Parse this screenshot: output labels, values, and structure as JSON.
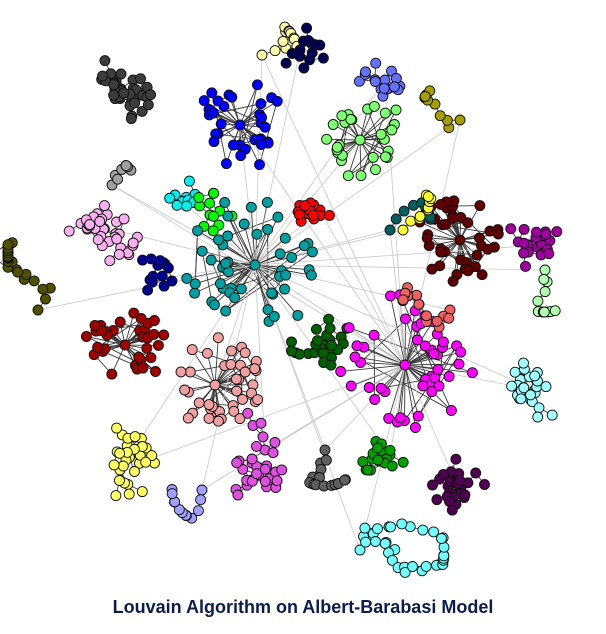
{
  "caption": "Louvain Algorithm on Albert-Barabasi Model",
  "communities": [
    {
      "name": "dark-gray",
      "color": "#3c3c3c"
    },
    {
      "name": "blue",
      "color": "#0000ff"
    },
    {
      "name": "light-yellow",
      "color": "#ffffa8"
    },
    {
      "name": "navy",
      "color": "#000050"
    },
    {
      "name": "periwinkle",
      "color": "#6670ff"
    },
    {
      "name": "light-green",
      "color": "#7cff70"
    },
    {
      "name": "olive-gold",
      "color": "#a89d00"
    },
    {
      "name": "maroon",
      "color": "#600000"
    },
    {
      "name": "purple",
      "color": "#a000a0"
    },
    {
      "name": "mint",
      "color": "#b0ffb0"
    },
    {
      "name": "pink",
      "color": "#f7b0f0"
    },
    {
      "name": "gray",
      "color": "#a0a0a0"
    },
    {
      "name": "cyan",
      "color": "#00f0f0"
    },
    {
      "name": "green",
      "color": "#00ff00"
    },
    {
      "name": "teal",
      "color": "#009fa0"
    },
    {
      "name": "red",
      "color": "#ff0000"
    },
    {
      "name": "dark-teal",
      "color": "#006060"
    },
    {
      "name": "yellow",
      "color": "#ffff30"
    },
    {
      "name": "olive-dark",
      "color": "#505000"
    },
    {
      "name": "dark-blue",
      "color": "#000090"
    },
    {
      "name": "dark-red",
      "color": "#a00000"
    },
    {
      "name": "salmon",
      "color": "#f0a0a0"
    },
    {
      "name": "violet",
      "color": "#e050e0"
    },
    {
      "name": "dark-green",
      "color": "#006000"
    },
    {
      "name": "magenta",
      "color": "#ff00ff"
    },
    {
      "name": "coral",
      "color": "#f06060"
    },
    {
      "name": "light-cyan",
      "color": "#a0ffff"
    },
    {
      "name": "lavender",
      "color": "#a0a0ff"
    },
    {
      "name": "bright-yellow",
      "color": "#ffff60"
    },
    {
      "name": "dark-purple",
      "color": "#500050"
    },
    {
      "name": "medium-green",
      "color": "#00a000"
    },
    {
      "name": "sky-cyan",
      "color": "#70ffff"
    },
    {
      "name": "charcoal",
      "color": "#606060"
    }
  ]
}
